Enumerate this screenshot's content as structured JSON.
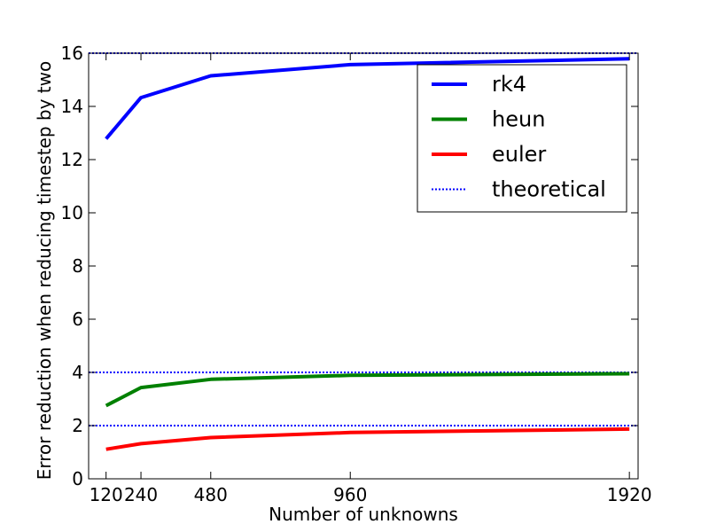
{
  "chart_data": {
    "type": "line",
    "title": "",
    "xlabel": "Number of unknowns",
    "ylabel": "Error reduction when reducing timestep by two",
    "x": [
      120,
      240,
      480,
      960,
      1920
    ],
    "xlim": [
      60,
      1950
    ],
    "ylim": [
      0,
      16
    ],
    "xticks": [
      120,
      240,
      480,
      960,
      1920
    ],
    "yticks": [
      0,
      2,
      4,
      6,
      8,
      10,
      12,
      14,
      16
    ],
    "grid": false,
    "legend_position": "top-right",
    "series": [
      {
        "name": "rk4",
        "color": "#0000ff",
        "style": "solid",
        "values": [
          12.78,
          14.33,
          15.15,
          15.57,
          15.79
        ]
      },
      {
        "name": "heun",
        "color": "#008000",
        "style": "solid",
        "values": [
          2.75,
          3.43,
          3.74,
          3.89,
          3.95
        ]
      },
      {
        "name": "euler",
        "color": "#ff0000",
        "style": "solid",
        "values": [
          1.11,
          1.32,
          1.55,
          1.74,
          1.87
        ]
      }
    ],
    "reference_lines": {
      "name": "theoretical",
      "color": "#0000ff",
      "style": "dotted",
      "y_values": [
        16,
        4,
        2
      ]
    }
  }
}
